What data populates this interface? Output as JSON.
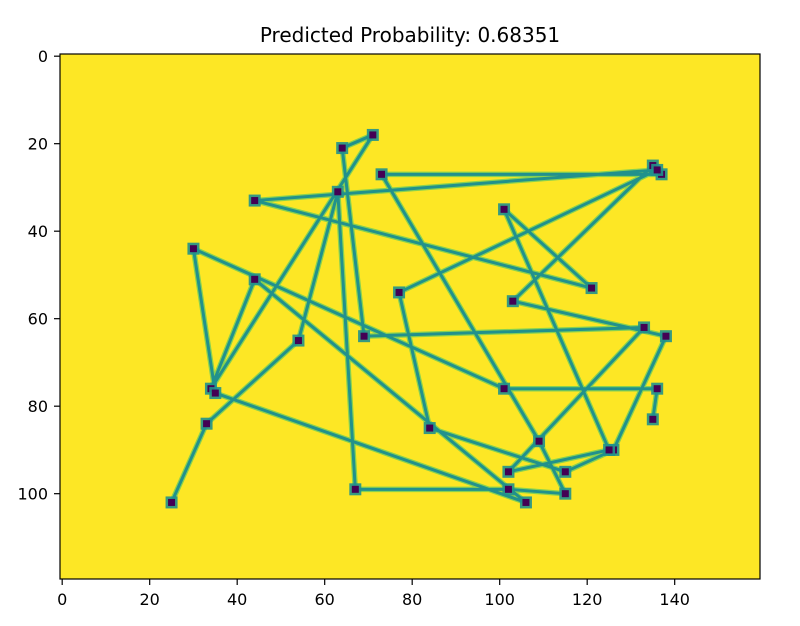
{
  "chart_data": {
    "type": "scatter",
    "title": "Predicted Probability: 0.68351",
    "xlabel": "",
    "ylabel": "",
    "xlim": [
      -0.5,
      159.5
    ],
    "ylim": [
      119.5,
      -0.5
    ],
    "y_inverted": true,
    "xticks": [
      0,
      20,
      40,
      60,
      80,
      100,
      120,
      140
    ],
    "yticks": [
      0,
      20,
      40,
      60,
      80,
      100
    ],
    "grid": false,
    "background_color": "#fde725",
    "line_color": "#21918c",
    "line_edge_color": "#5ec962",
    "marker_color": "#440154",
    "series": [
      {
        "x": [
          25,
          33,
          54,
          63,
          67,
          102,
          115,
          109,
          73,
          137,
          135,
          103,
          138,
          126,
          115,
          84,
          77,
          136,
          44,
          121,
          101,
          125,
          102,
          133,
          69,
          64,
          71,
          34,
          44,
          106,
          35,
          30,
          101,
          136,
          135
        ],
        "y": [
          102,
          84,
          65,
          31,
          99,
          99,
          100,
          88,
          27,
          27,
          25,
          56,
          64,
          90,
          95,
          85,
          54,
          26,
          33,
          53,
          35,
          90,
          95,
          62,
          64,
          21,
          18,
          76,
          51,
          102,
          77,
          44,
          76,
          76,
          83
        ]
      }
    ]
  }
}
